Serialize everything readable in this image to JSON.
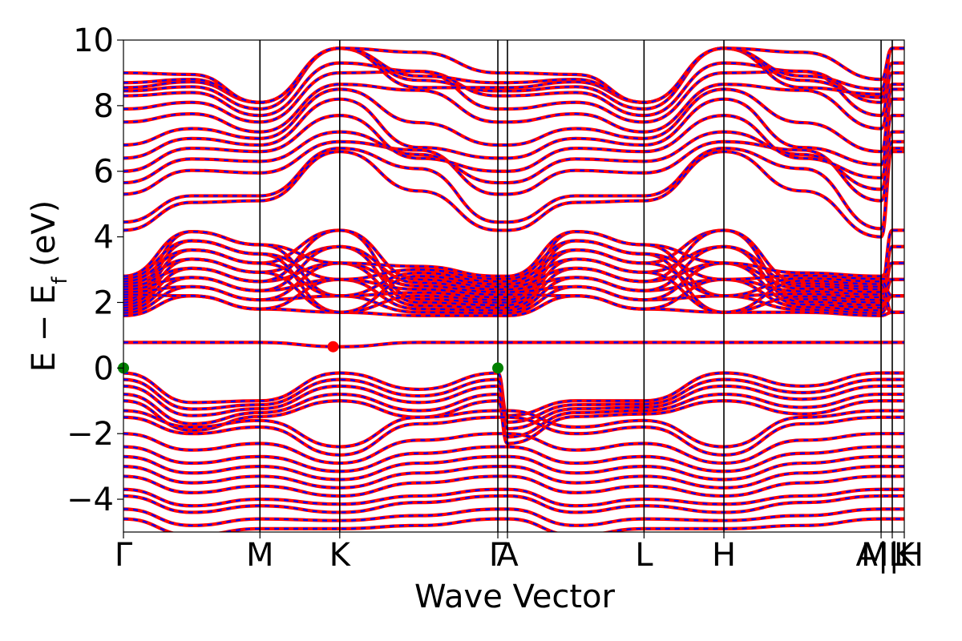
{
  "chart_data": {
    "type": "line",
    "title": "",
    "xlabel": "Wave Vector",
    "ylabel": {
      "base": "E − E",
      "subscript": "f",
      "suffix": " (eV)"
    },
    "ylim": [
      -5,
      10
    ],
    "yticks": [
      -4,
      -2,
      0,
      2,
      4,
      6,
      8,
      10
    ],
    "ytick_labels": [
      "−4",
      "−2",
      "0",
      "2",
      "4",
      "6",
      "8",
      "10"
    ],
    "xlim": [
      0,
      1
    ],
    "high_symmetry_points": [
      {
        "label": "Γ",
        "x": 0.0
      },
      {
        "label": "M",
        "x": 0.1748
      },
      {
        "label": "K",
        "x": 0.277
      },
      {
        "label": "Γ",
        "x": 0.4795
      },
      {
        "label": "A",
        "x": 0.4918
      },
      {
        "label": "L",
        "x": 0.6667
      },
      {
        "label": "H",
        "x": 0.769
      },
      {
        "label": "A|L",
        "x": 0.9703
      },
      {
        "label": "M|H",
        "x": 0.9846
      },
      {
        "label": "K",
        "x": 1.0
      }
    ],
    "grid": false,
    "legend": "none",
    "series_colors": {
      "spin_up": "#ff0000",
      "spin_down": "#0000ff"
    },
    "series_style": {
      "spin_up": "solid",
      "spin_down": "dashed"
    },
    "markers": [
      {
        "kind": "cbm",
        "x": 0.2685,
        "y": 0.65,
        "color": "#ff0000"
      },
      {
        "kind": "vbm",
        "x": 0.0,
        "y": 0.0,
        "color": "#008000"
      },
      {
        "kind": "vbm",
        "x": 0.4795,
        "y": 0.0,
        "color": "#008000"
      }
    ],
    "bands": {
      "conduction_gamma": [
        4.2,
        4.45,
        5.3,
        5.65,
        6.0,
        6.4,
        6.8,
        7.5,
        7.9,
        8.3,
        8.45,
        8.55,
        8.7,
        9.0
      ],
      "conduction_M": [
        5.1,
        5.25,
        5.95,
        6.3,
        6.6,
        6.8,
        7.0,
        7.2,
        7.5,
        7.7,
        7.9,
        8.1
      ],
      "conduction_K": [
        6.6,
        6.7,
        6.9,
        7.2,
        7.7,
        8.2,
        8.5,
        8.65,
        9.0,
        9.3,
        9.75
      ],
      "flat_band": 0.78,
      "valence_top": [
        -0.15,
        -0.35,
        -0.55,
        -0.8,
        -1.0
      ],
      "valence_deep": [
        -1.3,
        -1.5,
        -2.0,
        -2.4,
        -2.7,
        -3.0,
        -3.3,
        -3.7,
        -3.9,
        -4.3,
        -4.6
      ]
    }
  }
}
